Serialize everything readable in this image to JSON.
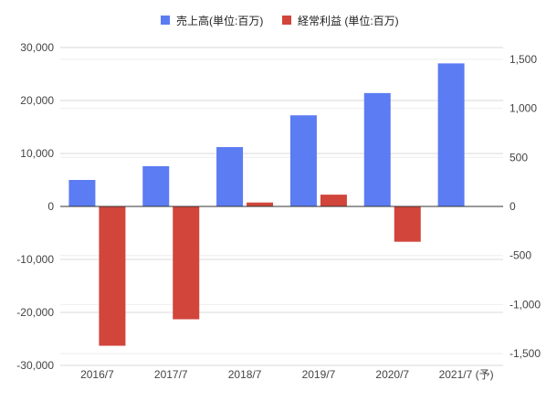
{
  "chart_data": {
    "type": "bar",
    "categories": [
      "2016/7",
      "2017/7",
      "2018/7",
      "2019/7",
      "2020/7",
      "2021/7 (予)"
    ],
    "series": [
      {
        "name": "売上高(単位:百万)",
        "axis": "left",
        "color": "#5b7cf2",
        "values": [
          5000,
          7600,
          11200,
          17200,
          21400,
          27000
        ]
      },
      {
        "name": "経常利益 (単位:百万)",
        "axis": "right",
        "color": "#d1453b",
        "values": [
          -1420,
          -1150,
          40,
          120,
          -360,
          null
        ]
      }
    ],
    "left_axis": {
      "ylim": [
        -30000,
        30000
      ],
      "ticks": [
        30000,
        20000,
        10000,
        0,
        -10000,
        -20000,
        -30000
      ],
      "tick_labels": [
        "30,000",
        "20,000",
        "10,000",
        "0",
        "-10,000",
        "-20,000",
        "-30,000"
      ]
    },
    "right_axis": {
      "ylim": [
        -1620,
        1620
      ],
      "ticks": [
        1500,
        1000,
        500,
        0,
        -500,
        -1000,
        -1500
      ],
      "tick_labels": [
        "1,500",
        "1,000",
        "500",
        "0",
        "-500",
        "-1,000",
        "-1,500"
      ]
    },
    "legend_position": "top",
    "grid": true,
    "title": "",
    "xlabel": "",
    "ylabel": ""
  }
}
